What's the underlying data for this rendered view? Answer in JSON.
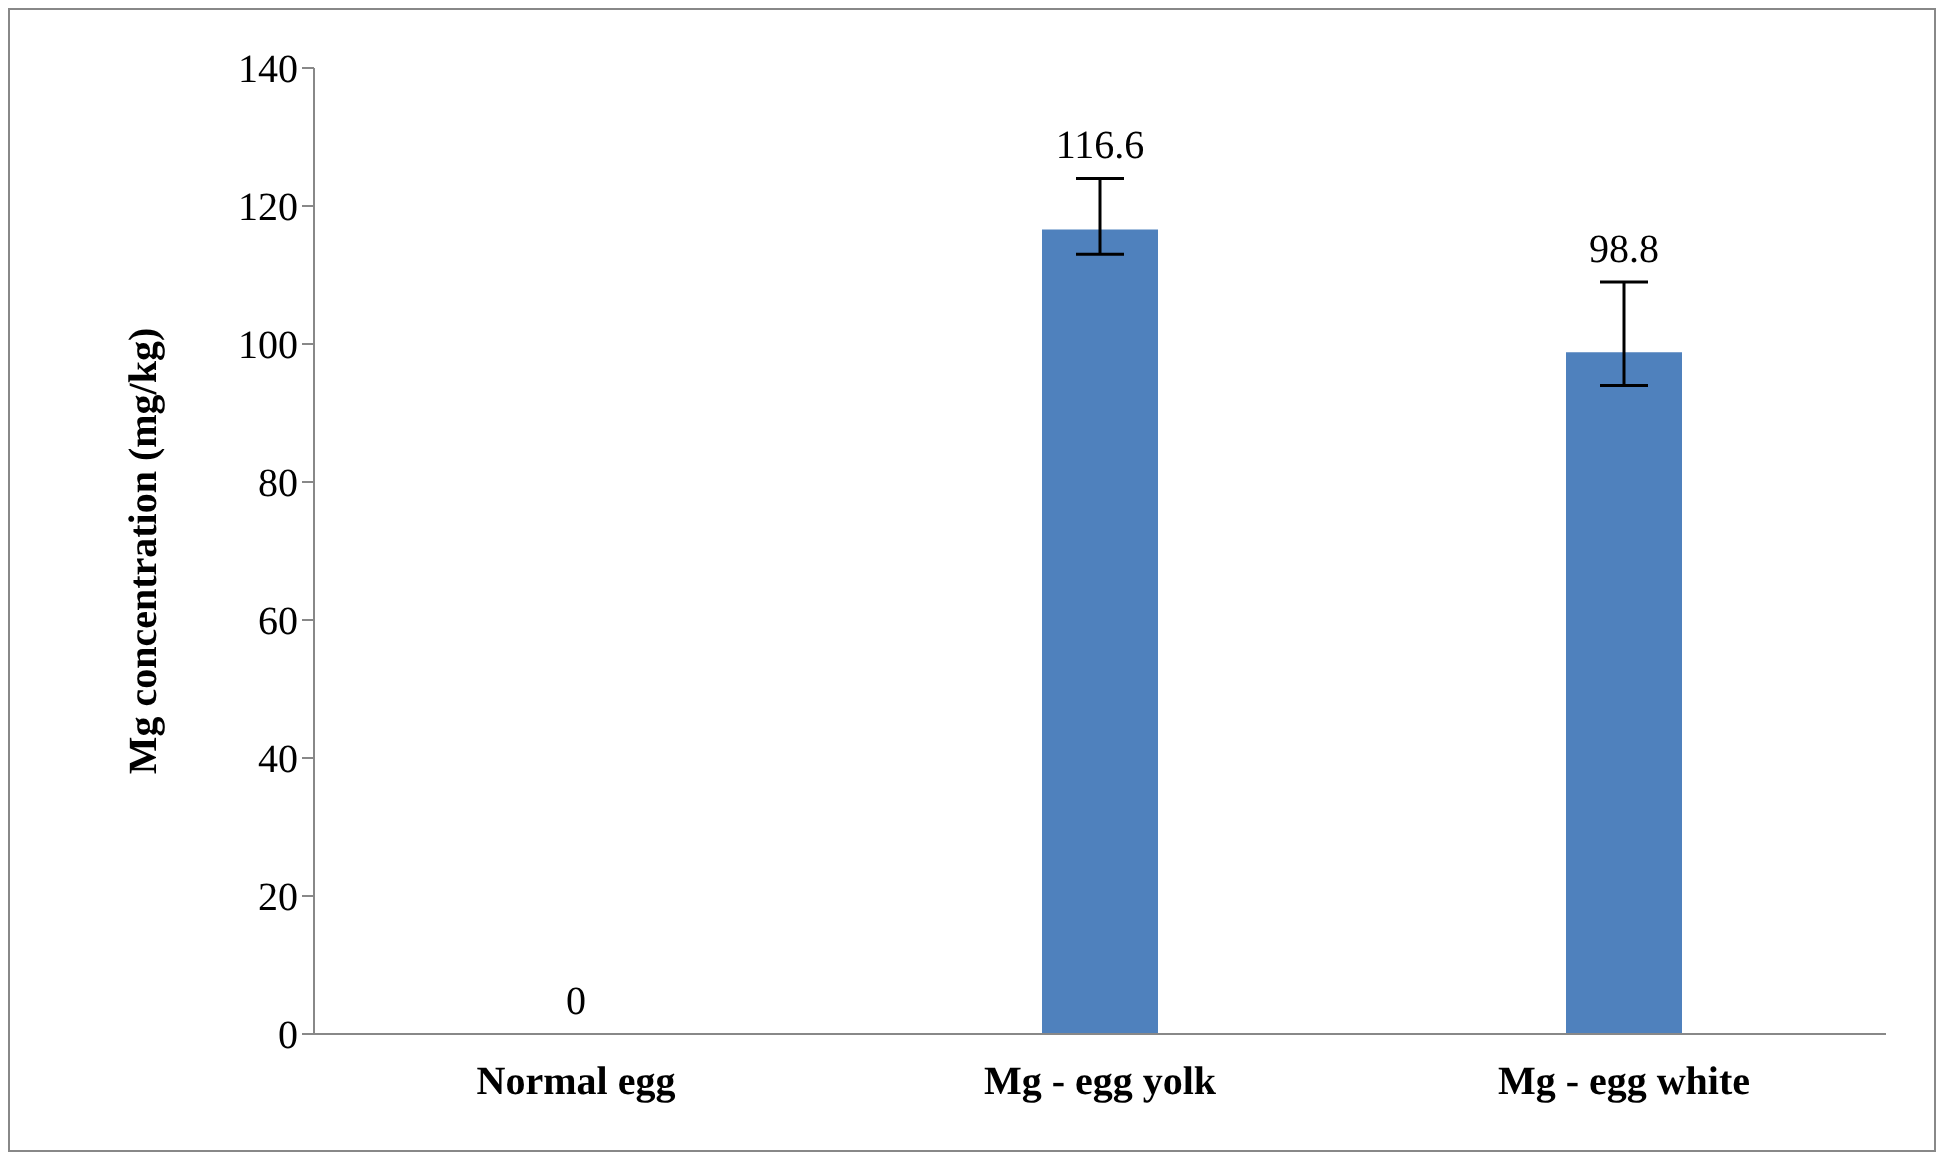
{
  "chart_data": {
    "type": "bar",
    "ylabel": "Mg concentration (mg/kg)",
    "categories": [
      "Normal egg",
      "Mg - egg yolk",
      "Mg - egg white"
    ],
    "values": [
      0,
      116.6,
      98.8
    ],
    "color": "#4f81bd",
    "errors": [
      null,
      [
        113,
        124
      ],
      [
        94,
        109
      ]
    ],
    "data_labels": true,
    "ylim": [
      0,
      140
    ],
    "yticks": [
      0,
      20,
      40,
      60,
      80,
      100,
      120,
      140
    ],
    "grid": false,
    "legend": false
  }
}
